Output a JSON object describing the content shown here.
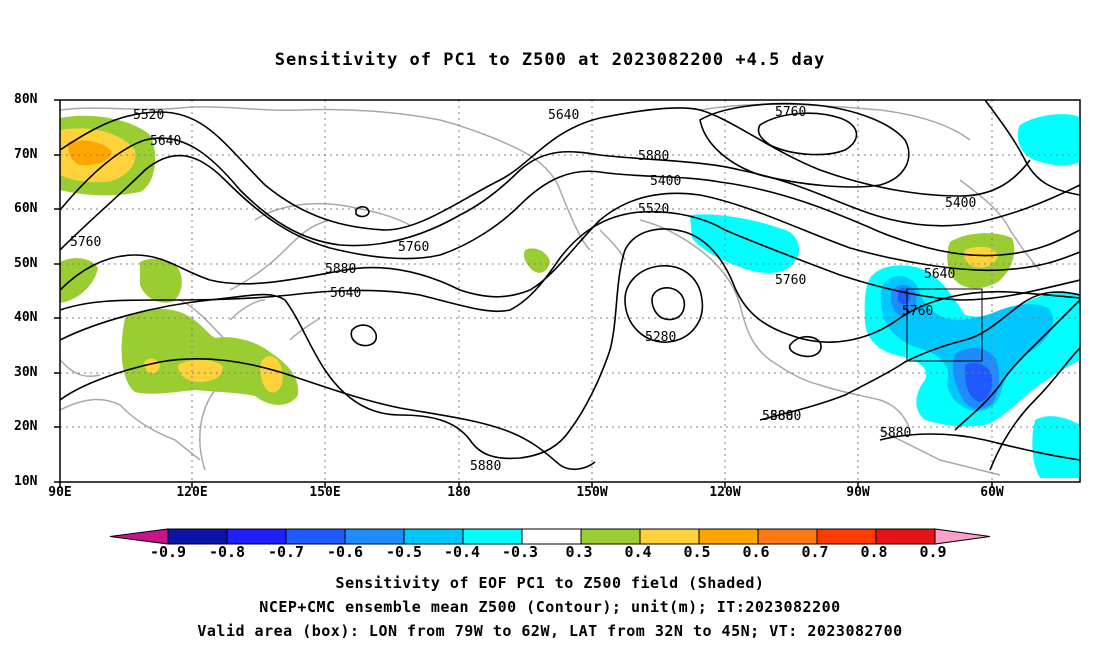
{
  "title": "Sensitivity of PC1 to Z500 at 2023082200 +4.5 day",
  "map": {
    "lat_labels": [
      "80N",
      "70N",
      "60N",
      "50N",
      "40N",
      "30N",
      "20N",
      "10N"
    ],
    "lon_labels": [
      "90E",
      "120E",
      "150E",
      "180",
      "150W",
      "120W",
      "90W",
      "60W"
    ],
    "contour_labels": [
      "5520",
      "5640",
      "5760",
      "5880",
      "5640",
      "5760",
      "5880",
      "5400",
      "5520",
      "5640",
      "5760",
      "5280",
      "5760",
      "5880",
      "5880",
      "5880",
      "5400",
      "5640",
      "5760",
      "5880"
    ],
    "valid_box": {
      "lon_from": "79W",
      "lon_to": "62W",
      "lat_from": "32N",
      "lat_to": "45N"
    }
  },
  "colorbar": {
    "labels": [
      "-0.9",
      "-0.8",
      "-0.7",
      "-0.6",
      "-0.5",
      "-0.4",
      "-0.3",
      "0.3",
      "0.4",
      "0.5",
      "0.6",
      "0.7",
      "0.8",
      "0.9"
    ],
    "colors": [
      "#0a14a8",
      "#1e1eff",
      "#1e5aff",
      "#1e8cff",
      "#00c8ff",
      "#00ffff",
      "#ffffff",
      "#9acd32",
      "#ffd23c",
      "#ffa500",
      "#ff7814",
      "#ff3c00",
      "#e61414"
    ],
    "left_arrow_color": "#c8148c",
    "right_arrow_color": "#ffa0c8"
  },
  "captions": [
    "Sensitivity of EOF PC1 to Z500 field (Shaded)",
    "NCEP+CMC ensemble mean Z500 (Contour); unit(m); IT:2023082200",
    "Valid area (box): LON from 79W to 62W, LAT from 32N to 45N; VT: 2023082700"
  ]
}
